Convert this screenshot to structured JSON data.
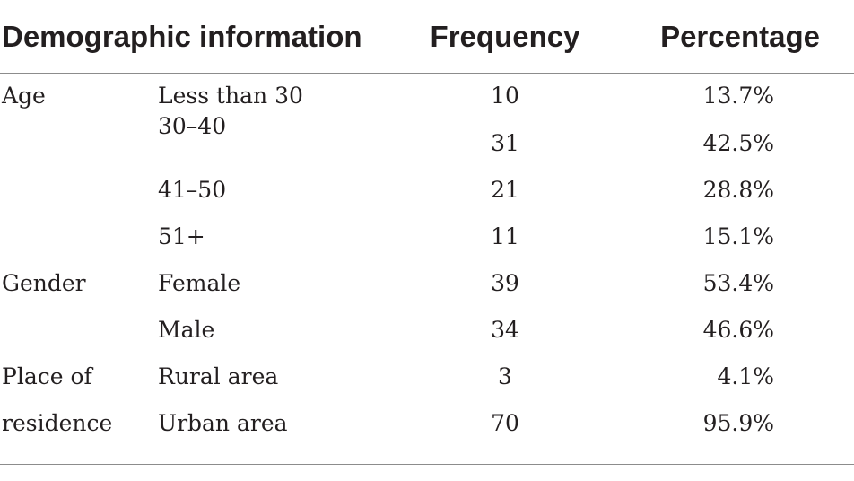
{
  "header": {
    "demographic": "Demographic information",
    "frequency": "Frequency",
    "percentage": "Percentage"
  },
  "categories": {
    "age": "Age",
    "gender": "Gender",
    "place_line1": "Place of",
    "place_line2": "residence"
  },
  "rows": [
    {
      "sub": "Less than 30",
      "frequency": "10",
      "percentage": "13.7%"
    },
    {
      "sub": "30–40",
      "frequency": "31",
      "percentage": "42.5%"
    },
    {
      "sub": "41–50",
      "frequency": "21",
      "percentage": "28.8%"
    },
    {
      "sub": "51+",
      "frequency": "11",
      "percentage": "15.1%"
    },
    {
      "sub": "Female",
      "frequency": "39",
      "percentage": "53.4%"
    },
    {
      "sub": "Male",
      "frequency": "34",
      "percentage": "46.6%"
    },
    {
      "sub": "Rural area",
      "frequency": "3",
      "percentage": "4.1%"
    },
    {
      "sub": "Urban area",
      "frequency": "70",
      "percentage": "95.9%"
    }
  ]
}
